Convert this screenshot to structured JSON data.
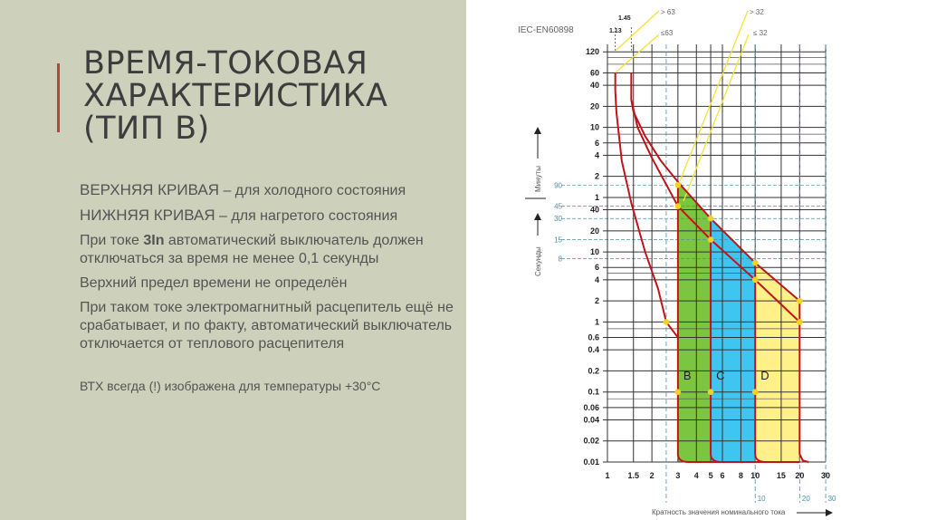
{
  "slide": {
    "title_lines": [
      "ВРЕМЯ-ТОКОВАЯ",
      "ХАРАКТЕРИСТИКА",
      "(ТИП B)"
    ],
    "bullets": [
      {
        "caps": "ВЕРХНЯЯ КРИВАЯ",
        "rest": " – для холодного состояния"
      },
      {
        "caps": "НИЖНЯЯ КРИВАЯ",
        "rest": " – для нагретого состояния"
      },
      {
        "pre": "При токе ",
        "bold": "3In",
        "rest": " автоматический выключатель должен отключаться за время не менее 0,1 секунды"
      },
      {
        "text": "Верхний предел времени не определён"
      },
      {
        "text": "При таком токе электромагнитный расцепитель ещё не срабатывает, и по факту, автоматический выключатель отключается от теплового расцепителя"
      }
    ],
    "note": "ВТХ всегда (!) изображена для температуры +30°C",
    "accent_color": "#b5453a",
    "background_color": "#cdd0bb"
  },
  "chart_data": {
    "type": "line",
    "title": "IEC-EN60898",
    "xlabel": "Кратность значения номинального тока",
    "ylabel_minutes": "Минуты",
    "ylabel_seconds": "Секунды",
    "xscale": "log",
    "yscale": "log",
    "xlim": [
      1,
      30
    ],
    "ylim_seconds": [
      0.01,
      7200
    ],
    "x_ticks": [
      1,
      1.5,
      2,
      3,
      4,
      5,
      6,
      8,
      10,
      15,
      20,
      30
    ],
    "x_tick_labels": [
      "1",
      "1.5",
      "2",
      "3",
      "4",
      "5",
      "6",
      "8",
      "10",
      "15",
      "20",
      "30"
    ],
    "x_extra_labels": [
      "10",
      "20",
      "30"
    ],
    "y_minute_ticks": [
      {
        "label": "120",
        "s": 7200
      },
      {
        "label": "60",
        "s": 3600
      },
      {
        "label": "40",
        "s": 2400
      },
      {
        "label": "20",
        "s": 1200
      },
      {
        "label": "10",
        "s": 600
      },
      {
        "label": "6",
        "s": 360
      },
      {
        "label": "4",
        "s": 240
      },
      {
        "label": "2",
        "s": 120
      },
      {
        "label": "1",
        "s": 60
      }
    ],
    "y_second_ticks": [
      {
        "label": "40",
        "s": 40
      },
      {
        "label": "20",
        "s": 20
      },
      {
        "label": "10",
        "s": 10
      },
      {
        "label": "6",
        "s": 6
      },
      {
        "label": "4",
        "s": 4
      },
      {
        "label": "2",
        "s": 2
      },
      {
        "label": "1",
        "s": 1
      },
      {
        "label": "0.6",
        "s": 0.6
      },
      {
        "label": "0.4",
        "s": 0.4
      },
      {
        "label": "0.2",
        "s": 0.2
      },
      {
        "label": "0.1",
        "s": 0.1
      },
      {
        "label": "0.06",
        "s": 0.06
      },
      {
        "label": "0.04",
        "s": 0.04
      },
      {
        "label": "0.02",
        "s": 0.02
      },
      {
        "label": "0.01",
        "s": 0.01
      }
    ],
    "y_reference_ticks": [
      {
        "label": "90",
        "s": 90
      },
      {
        "label": "45",
        "s": 45
      },
      {
        "label": "30",
        "s": 30
      },
      {
        "label": "15",
        "s": 15
      },
      {
        "label": "8",
        "s": 8
      }
    ],
    "annotations": {
      "i113": "1.13",
      "i145": "1.45",
      "gt63": "> 63",
      "le63": "≤63",
      "gt32": "> 32",
      "le32": "≤ 32"
    },
    "series": [
      {
        "name": "1.13 In curve",
        "color": "#c0141c",
        "points": [
          [
            1.13,
            3600
          ],
          [
            1.13,
            2000
          ],
          [
            1.15,
            1000
          ],
          [
            1.25,
            200
          ],
          [
            1.45,
            50
          ],
          [
            1.8,
            10
          ],
          [
            2.2,
            3
          ],
          [
            2.5,
            1
          ],
          [
            3,
            0.6
          ]
        ]
      },
      {
        "name": "Upper curve (cold)",
        "color": "#c0141c",
        "points": [
          [
            1.45,
            3600
          ],
          [
            1.45,
            1500
          ],
          [
            1.5,
            1000
          ],
          [
            1.8,
            450
          ],
          [
            2.3,
            200
          ],
          [
            3,
            100
          ],
          [
            5,
            30
          ],
          [
            10,
            7
          ],
          [
            20,
            2
          ],
          [
            20,
            0.013
          ],
          [
            21,
            0.0105
          ],
          [
            23,
            0.01
          ]
        ]
      },
      {
        "name": "Lower curve (hot)",
        "color": "#c0141c",
        "points": [
          [
            1.45,
            1500
          ],
          [
            1.6,
            600
          ],
          [
            2,
            220
          ],
          [
            3,
            45
          ],
          [
            5,
            15
          ],
          [
            10,
            4
          ],
          [
            20,
            1
          ]
        ]
      }
    ],
    "bands": [
      {
        "label": "B",
        "x": [
          3,
          5
        ],
        "color": "#7cc540"
      },
      {
        "label": "C",
        "x": [
          5,
          10
        ],
        "color": "#3fc6f0"
      },
      {
        "label": "D",
        "x": [
          10,
          20
        ],
        "color": "#fff08a"
      }
    ],
    "markers": [
      [
        3,
        90
      ],
      [
        3,
        45
      ],
      [
        5,
        30
      ],
      [
        5,
        15
      ],
      [
        10,
        7
      ],
      [
        10,
        4
      ],
      [
        20,
        2
      ],
      [
        20,
        1
      ],
      [
        2.5,
        1
      ],
      [
        3,
        0.1
      ],
      [
        5,
        0.1
      ],
      [
        10,
        0.1
      ]
    ]
  }
}
